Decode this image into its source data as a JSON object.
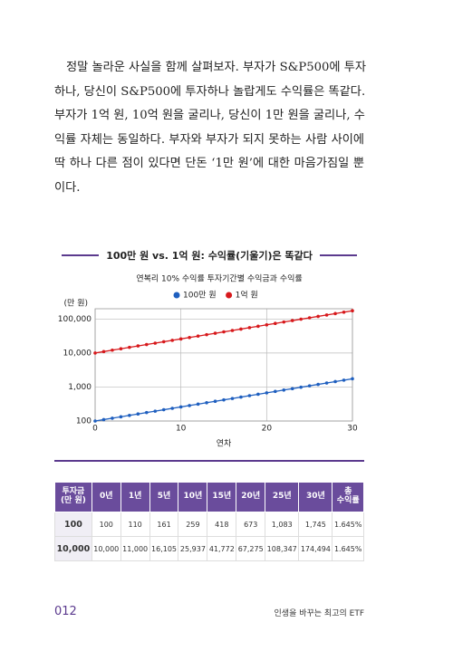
{
  "body": {
    "lines": [
      "정말 놀라운 사실을 함께 살펴보자. 부자가 S&P500에 투자",
      "하나, 당신이 S&P500에 투자하나 놀랍게도 수익률은 똑같다.",
      "부자가 1억 원, 10억 원을 굴리나, 당신이 1만 원을 굴리나, 수",
      "익률 자체는 동일하다. 부자와 부자가 되지 못하는 사람 사이에",
      "딱 하나 다른 점이 있다면 단돈 ‘1만 원’에 대한 마음가짐일 뿐",
      "이다."
    ]
  },
  "figure_title": "100만 원 vs. 1억 원: 수익률(기울기)은 똑같다",
  "chart_data": {
    "type": "line",
    "title": "연복리 10% 수익률 투자기간별 수익금과 수익률",
    "xlabel": "연차",
    "ylabel": "(만 원)",
    "log_y": true,
    "grid": true,
    "x": [
      0,
      1,
      2,
      3,
      4,
      5,
      6,
      7,
      8,
      9,
      10,
      11,
      12,
      13,
      14,
      15,
      16,
      17,
      18,
      19,
      20,
      21,
      22,
      23,
      24,
      25,
      26,
      27,
      28,
      29,
      30
    ],
    "series": [
      {
        "name": "100만 원",
        "color": "#1f5fbf",
        "values": [
          100,
          110,
          121,
          133.1,
          146.41,
          161.05,
          177.16,
          194.87,
          214.36,
          235.79,
          259.37,
          285.31,
          313.84,
          345.23,
          379.75,
          417.72,
          459.5,
          505.45,
          555.99,
          611.59,
          672.75,
          740.02,
          814.03,
          895.43,
          984.97,
          1083.47,
          1191.82,
          1311,
          1442.1,
          1586.31,
          1744.94
        ]
      },
      {
        "name": "1억 원",
        "color": "#d7191c",
        "values": [
          10000,
          11000,
          12100,
          13310,
          14641,
          16105,
          17716,
          19487,
          21436,
          23579,
          25937,
          28531,
          31384,
          34523,
          37975,
          41772,
          45950,
          50545,
          55599,
          61159,
          67275,
          74002,
          81403,
          89543,
          98497,
          108347,
          119182,
          131100,
          144210,
          158631,
          174494
        ]
      }
    ],
    "xlim": [
      0,
      30
    ],
    "xticks": [
      0,
      10,
      20,
      30
    ],
    "ylim": [
      100,
      200000
    ],
    "yticks": [
      100,
      {
        "value": 1000,
        "label": "1,000"
      },
      {
        "value": 10000,
        "label": "10,000"
      },
      {
        "value": 100000,
        "label": "100,000"
      }
    ]
  },
  "table": {
    "header": [
      "투자금\n(만 원)",
      "0년",
      "1년",
      "5년",
      "10년",
      "15년",
      "20년",
      "25년",
      "30년",
      "총\n수익률"
    ],
    "rows": [
      [
        "100",
        "100",
        "110",
        "161",
        "259",
        "418",
        "673",
        "1,083",
        "1,745",
        "1.645%"
      ],
      [
        "10,000",
        "10,000",
        "11,000",
        "16,105",
        "25,937",
        "41,772",
        "67,275",
        "108,347",
        "174,494",
        "1.645%"
      ]
    ]
  },
  "footer": {
    "page": "012",
    "book": "인생을 바꾸는 최고의 ETF"
  }
}
